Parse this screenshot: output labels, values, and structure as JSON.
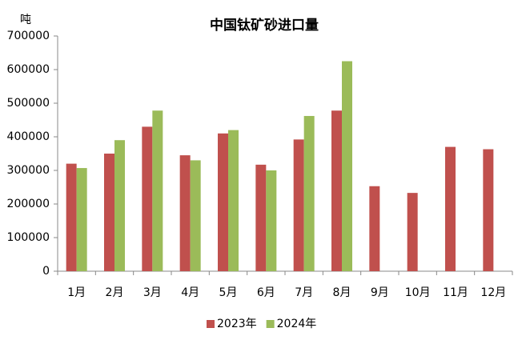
{
  "chart_data": {
    "type": "bar",
    "title": "中国钛矿砂进口量",
    "y_label": "吨",
    "categories": [
      "1月",
      "2月",
      "3月",
      "4月",
      "5月",
      "6月",
      "7月",
      "8月",
      "9月",
      "10月",
      "11月",
      "12月"
    ],
    "series": [
      {
        "name": "2023年",
        "color": "#c0504d",
        "values": [
          320000,
          350000,
          430000,
          345000,
          410000,
          317000,
          392000,
          478000,
          253000,
          233000,
          370000,
          363000
        ]
      },
      {
        "name": "2024年",
        "color": "#9bbb59",
        "values": [
          307000,
          390000,
          478000,
          330000,
          420000,
          300000,
          462000,
          625000,
          null,
          null,
          null,
          null
        ]
      }
    ],
    "ylim": [
      0,
      700000
    ],
    "yticks": [
      0,
      100000,
      200000,
      300000,
      400000,
      500000,
      600000,
      700000
    ],
    "grid": false,
    "legend": "bottom"
  }
}
